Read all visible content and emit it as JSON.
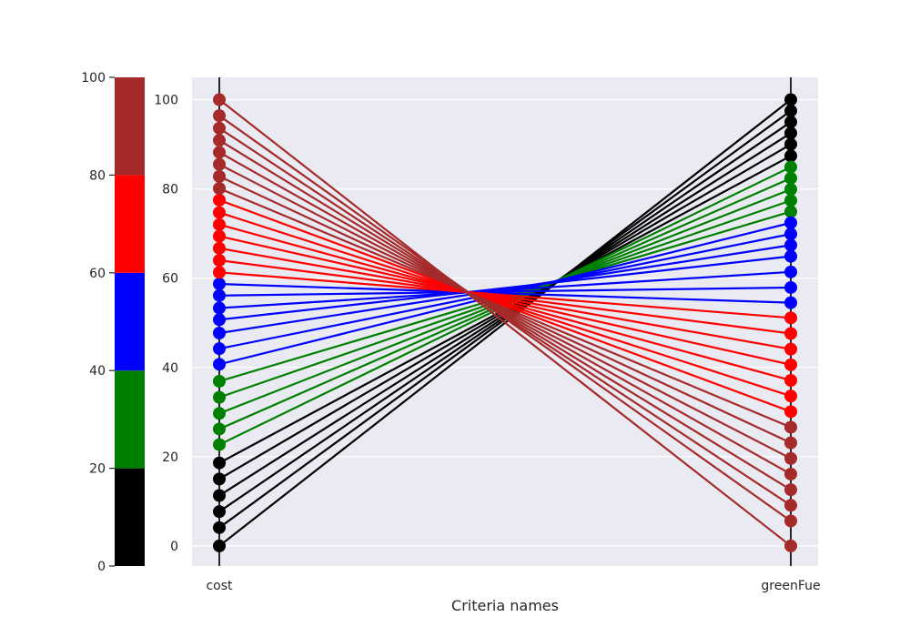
{
  "chart_data": {
    "type": "parallel-coordinates",
    "xlabel": "Criteria names",
    "axes": [
      "cost",
      "greenFue"
    ],
    "ylim": [
      -4.5,
      105
    ],
    "yticks": [
      0,
      20,
      40,
      60,
      80,
      100
    ],
    "grid": true,
    "colorbar": {
      "range": [
        0,
        100
      ],
      "ticks": [
        0,
        20,
        40,
        60,
        80,
        100
      ],
      "bins": [
        {
          "from": 0,
          "to": 20,
          "color": "#000000"
        },
        {
          "from": 20,
          "to": 40,
          "color": "#008000"
        },
        {
          "from": 40,
          "to": 60,
          "color": "#0000ff"
        },
        {
          "from": 60,
          "to": 80,
          "color": "#ff0000"
        },
        {
          "from": 80,
          "to": 100,
          "color": "#a52a2a"
        }
      ]
    },
    "lines": [
      {
        "cost": 0,
        "greenFue": 100,
        "color": "#000000"
      },
      {
        "cost": 4.1,
        "greenFue": 97.5,
        "color": "#000000"
      },
      {
        "cost": 7.7,
        "greenFue": 95.0,
        "color": "#000000"
      },
      {
        "cost": 11.3,
        "greenFue": 92.5,
        "color": "#000000"
      },
      {
        "cost": 15.0,
        "greenFue": 90.0,
        "color": "#000000"
      },
      {
        "cost": 18.6,
        "greenFue": 87.4,
        "color": "#000000"
      },
      {
        "cost": 22.7,
        "greenFue": 84.9,
        "color": "#008000"
      },
      {
        "cost": 26.2,
        "greenFue": 82.4,
        "color": "#008000"
      },
      {
        "cost": 29.7,
        "greenFue": 79.9,
        "color": "#008000"
      },
      {
        "cost": 33.3,
        "greenFue": 77.4,
        "color": "#008000"
      },
      {
        "cost": 36.9,
        "greenFue": 74.9,
        "color": "#008000"
      },
      {
        "cost": 40.7,
        "greenFue": 72.4,
        "color": "#0000ff"
      },
      {
        "cost": 44.2,
        "greenFue": 69.9,
        "color": "#0000ff"
      },
      {
        "cost": 47.7,
        "greenFue": 67.4,
        "color": "#0000ff"
      },
      {
        "cost": 50.7,
        "greenFue": 64.9,
        "color": "#0000ff"
      },
      {
        "cost": 53.3,
        "greenFue": 61.4,
        "color": "#0000ff"
      },
      {
        "cost": 56.1,
        "greenFue": 57.9,
        "color": "#0000ff"
      },
      {
        "cost": 58.7,
        "greenFue": 54.5,
        "color": "#0000ff"
      },
      {
        "cost": 61.3,
        "greenFue": 51.1,
        "color": "#ff0000"
      },
      {
        "cost": 64.0,
        "greenFue": 47.6,
        "color": "#ff0000"
      },
      {
        "cost": 66.7,
        "greenFue": 44.1,
        "color": "#ff0000"
      },
      {
        "cost": 69.4,
        "greenFue": 40.6,
        "color": "#ff0000"
      },
      {
        "cost": 72.0,
        "greenFue": 37.1,
        "color": "#ff0000"
      },
      {
        "cost": 74.7,
        "greenFue": 33.6,
        "color": "#ff0000"
      },
      {
        "cost": 77.5,
        "greenFue": 30.1,
        "color": "#ff0000"
      },
      {
        "cost": 80.1,
        "greenFue": 26.6,
        "color": "#a52a2a"
      },
      {
        "cost": 82.8,
        "greenFue": 23.1,
        "color": "#a52a2a"
      },
      {
        "cost": 85.5,
        "greenFue": 19.6,
        "color": "#a52a2a"
      },
      {
        "cost": 88.2,
        "greenFue": 16.1,
        "color": "#a52a2a"
      },
      {
        "cost": 90.9,
        "greenFue": 12.6,
        "color": "#a52a2a"
      },
      {
        "cost": 93.6,
        "greenFue": 9.1,
        "color": "#a52a2a"
      },
      {
        "cost": 96.4,
        "greenFue": 5.6,
        "color": "#a52a2a"
      },
      {
        "cost": 100,
        "greenFue": 0,
        "color": "#a52a2a"
      }
    ]
  }
}
